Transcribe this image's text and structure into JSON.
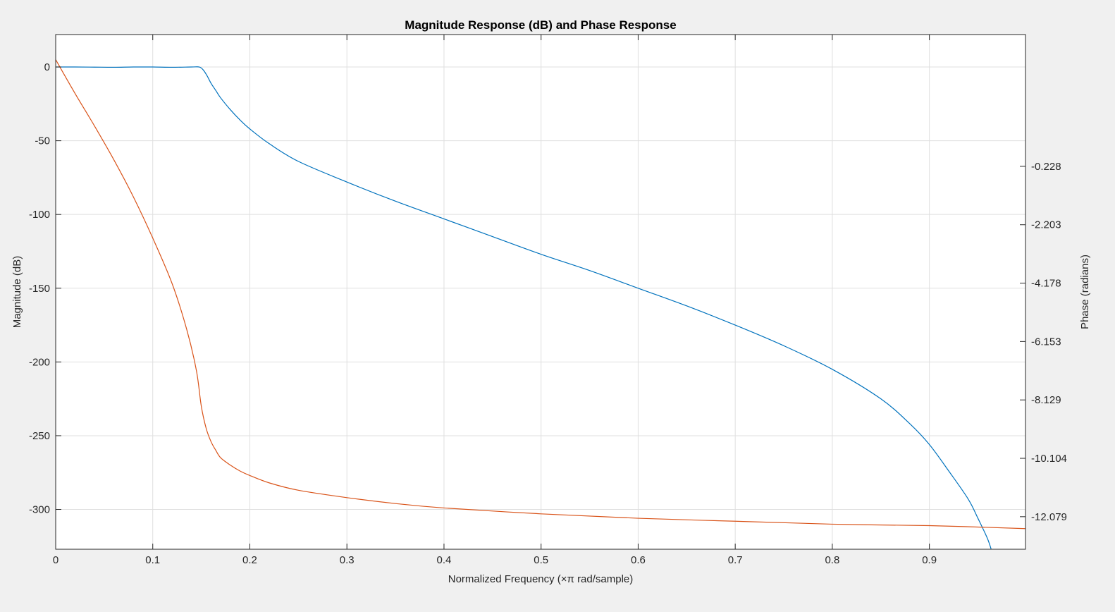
{
  "chart_data": {
    "type": "line",
    "title": "Magnitude Response (dB) and Phase Response",
    "xlabel": "Normalized Frequency (×π rad/sample)",
    "ylabel_left": "Magnitude (dB)",
    "ylabel_right": "Phase (radians)",
    "xlim": [
      0,
      0.999
    ],
    "ylim_left": [
      -327,
      22
    ],
    "ylim_right": [
      -13.18,
      4.23
    ],
    "x_ticks": [
      0,
      0.1,
      0.2,
      0.3,
      0.4,
      0.5,
      0.6,
      0.7,
      0.8,
      0.9
    ],
    "x_tick_labels": [
      "0",
      "0.1",
      "0.2",
      "0.3",
      "0.4",
      "0.5",
      "0.6",
      "0.7",
      "0.8",
      "0.9"
    ],
    "y_ticks_left": [
      0,
      -50,
      -100,
      -150,
      -200,
      -250,
      -300
    ],
    "y_tick_labels_left": [
      "0",
      "-50",
      "-100",
      "-150",
      "-200",
      "-250",
      "-300"
    ],
    "y_ticks_right": [
      -0.228,
      -2.203,
      -4.178,
      -6.153,
      -8.129,
      -10.104,
      -12.079
    ],
    "y_tick_labels_right": [
      "-0.228",
      "-2.203",
      "-4.178",
      "-6.153",
      "-8.129",
      "-10.104",
      "-12.079"
    ],
    "grid": true,
    "series": [
      {
        "axis": "left",
        "color": "#0072bd",
        "x": [
          0,
          0.02,
          0.04,
          0.06,
          0.08,
          0.1,
          0.12,
          0.14,
          0.148,
          0.152,
          0.156,
          0.16,
          0.165,
          0.17,
          0.18,
          0.19,
          0.2,
          0.22,
          0.25,
          0.3,
          0.35,
          0.4,
          0.45,
          0.5,
          0.55,
          0.6,
          0.65,
          0.7,
          0.75,
          0.8,
          0.85,
          0.88,
          0.9,
          0.92,
          0.94,
          0.95,
          0.96,
          0.965
        ],
        "y": [
          0,
          0,
          -0.1,
          -0.2,
          0,
          0,
          -0.2,
          0,
          0,
          -2,
          -6,
          -11,
          -16,
          -21,
          -29,
          -36,
          -42,
          -52,
          -64,
          -78,
          -91,
          -103,
          -115,
          -127,
          -138,
          -150,
          -162,
          -175,
          -189,
          -205,
          -225,
          -242,
          -256,
          -274,
          -293,
          -306,
          -320,
          -330
        ]
      },
      {
        "axis": "left",
        "color": "#d95319",
        "x": [
          0,
          0.02,
          0.04,
          0.06,
          0.08,
          0.1,
          0.12,
          0.135,
          0.145,
          0.15,
          0.155,
          0.16,
          0.165,
          0.17,
          0.18,
          0.19,
          0.2,
          0.22,
          0.25,
          0.3,
          0.35,
          0.4,
          0.5,
          0.6,
          0.7,
          0.8,
          0.9,
          0.999
        ],
        "y": [
          5,
          -18,
          -40,
          -63,
          -88,
          -116,
          -147,
          -178,
          -206,
          -230,
          -245,
          -254,
          -260,
          -265,
          -270,
          -274,
          -277,
          -282,
          -287,
          -292,
          -296,
          -299,
          -303,
          -306,
          -308,
          -310,
          -311,
          -313
        ]
      }
    ]
  }
}
